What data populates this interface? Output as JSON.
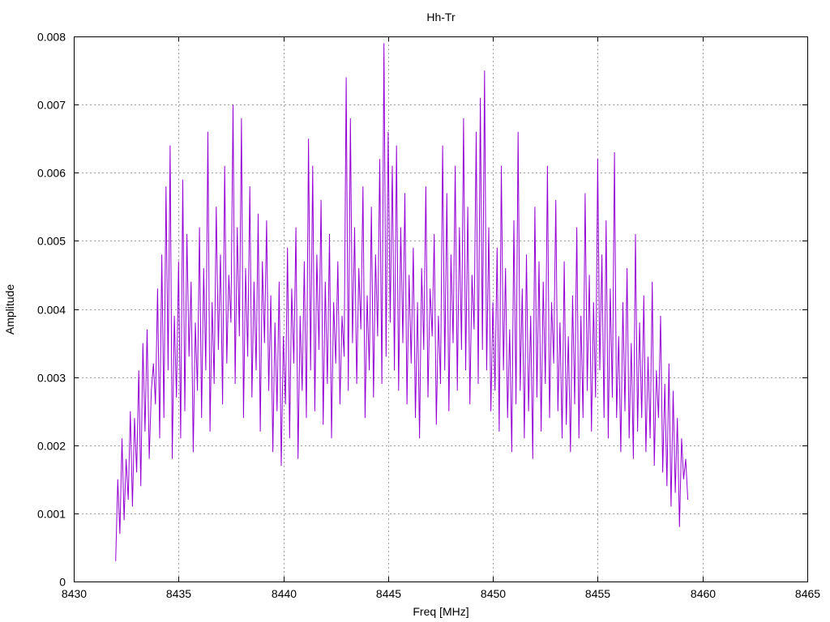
{
  "chart_data": {
    "type": "line",
    "title": "Hh-Tr",
    "xlabel": "Freq [MHz]",
    "ylabel": "Amplitude",
    "xlim": [
      8430,
      8465
    ],
    "ylim": [
      0,
      0.008
    ],
    "xticks": [
      "8430",
      "8435",
      "8440",
      "8445",
      "8450",
      "8455",
      "8460",
      "8465"
    ],
    "yticks": [
      "0",
      "0.001",
      "0.002",
      "0.003",
      "0.004",
      "0.005",
      "0.006",
      "0.007",
      "0.008"
    ],
    "grid": true,
    "series_color": "#9400d3",
    "series": [
      {
        "x_start": 8432.0,
        "x_step": 0.1,
        "values": [
          0.0003,
          0.0015,
          0.0007,
          0.0021,
          0.0009,
          0.0018,
          0.0012,
          0.0025,
          0.0011,
          0.0024,
          0.0016,
          0.0031,
          0.0014,
          0.0035,
          0.0022,
          0.0037,
          0.0018,
          0.0028,
          0.0032,
          0.0026,
          0.0043,
          0.0021,
          0.0048,
          0.0024,
          0.0058,
          0.0031,
          0.0064,
          0.0018,
          0.0039,
          0.0027,
          0.0047,
          0.0021,
          0.0059,
          0.0025,
          0.0051,
          0.0033,
          0.0044,
          0.0019,
          0.0038,
          0.0028,
          0.0052,
          0.0024,
          0.0046,
          0.0031,
          0.0066,
          0.0022,
          0.0041,
          0.0029,
          0.0055,
          0.0034,
          0.0048,
          0.0026,
          0.0061,
          0.0032,
          0.0045,
          0.0038,
          0.007,
          0.0029,
          0.0052,
          0.0036,
          0.0068,
          0.0024,
          0.0046,
          0.0033,
          0.0058,
          0.0027,
          0.0044,
          0.0031,
          0.0054,
          0.0022,
          0.0047,
          0.0035,
          0.0053,
          0.0028,
          0.0042,
          0.0019,
          0.0038,
          0.0025,
          0.0044,
          0.0017,
          0.0036,
          0.0026,
          0.0049,
          0.0021,
          0.0043,
          0.0032,
          0.0052,
          0.0018,
          0.0039,
          0.0028,
          0.0047,
          0.0024,
          0.0065,
          0.0031,
          0.0061,
          0.0025,
          0.0048,
          0.0034,
          0.0056,
          0.0023,
          0.0044,
          0.0029,
          0.0051,
          0.0021,
          0.0041,
          0.0032,
          0.0047,
          0.0026,
          0.0039,
          0.0033,
          0.0074,
          0.0028,
          0.0068,
          0.0035,
          0.0052,
          0.0029,
          0.0046,
          0.0037,
          0.0058,
          0.0024,
          0.0042,
          0.0031,
          0.0055,
          0.0027,
          0.0048,
          0.0036,
          0.0062,
          0.0029,
          0.0079,
          0.0033,
          0.0066,
          0.0038,
          0.0061,
          0.0031,
          0.0064,
          0.0028,
          0.0052,
          0.0035,
          0.0057,
          0.0026,
          0.0045,
          0.0032,
          0.0049,
          0.0024,
          0.0041,
          0.0021,
          0.0046,
          0.0034,
          0.0058,
          0.0027,
          0.0043,
          0.0036,
          0.0051,
          0.0023,
          0.0039,
          0.0029,
          0.0064,
          0.0031,
          0.0057,
          0.0025,
          0.0048,
          0.0035,
          0.0061,
          0.0028,
          0.0052,
          0.0034,
          0.0068,
          0.0031,
          0.0055,
          0.0026,
          0.0045,
          0.0037,
          0.0066,
          0.0029,
          0.0071,
          0.0034,
          0.0075,
          0.0031,
          0.0052,
          0.0025,
          0.0041,
          0.0028,
          0.0049,
          0.0022,
          0.0061,
          0.0031,
          0.0046,
          0.0024,
          0.0037,
          0.0019,
          0.0053,
          0.0026,
          0.0066,
          0.0028,
          0.0043,
          0.0021,
          0.0048,
          0.0025,
          0.0039,
          0.0018,
          0.0055,
          0.0027,
          0.0047,
          0.0022,
          0.0044,
          0.0029,
          0.0061,
          0.0024,
          0.0041,
          0.0032,
          0.0056,
          0.0025,
          0.0038,
          0.0021,
          0.0047,
          0.0023,
          0.0036,
          0.0019,
          0.0042,
          0.0026,
          0.0052,
          0.0021,
          0.0039,
          0.0024,
          0.0057,
          0.0028,
          0.0045,
          0.0022,
          0.0041,
          0.0027,
          0.0062,
          0.0031,
          0.0048,
          0.0024,
          0.0053,
          0.0021,
          0.0043,
          0.0027,
          0.0063,
          0.0024,
          0.0036,
          0.0019,
          0.0041,
          0.0025,
          0.0046,
          0.0021,
          0.0035,
          0.0018,
          0.0051,
          0.0022,
          0.0038,
          0.0024,
          0.0042,
          0.0019,
          0.0033,
          0.0021,
          0.0044,
          0.0017,
          0.0031,
          0.0024,
          0.0039,
          0.0016,
          0.0029,
          0.0014,
          0.0032,
          0.0011,
          0.0028,
          0.0013,
          0.0024,
          0.0008,
          0.0021,
          0.0015,
          0.0018,
          0.0012
        ]
      }
    ]
  }
}
